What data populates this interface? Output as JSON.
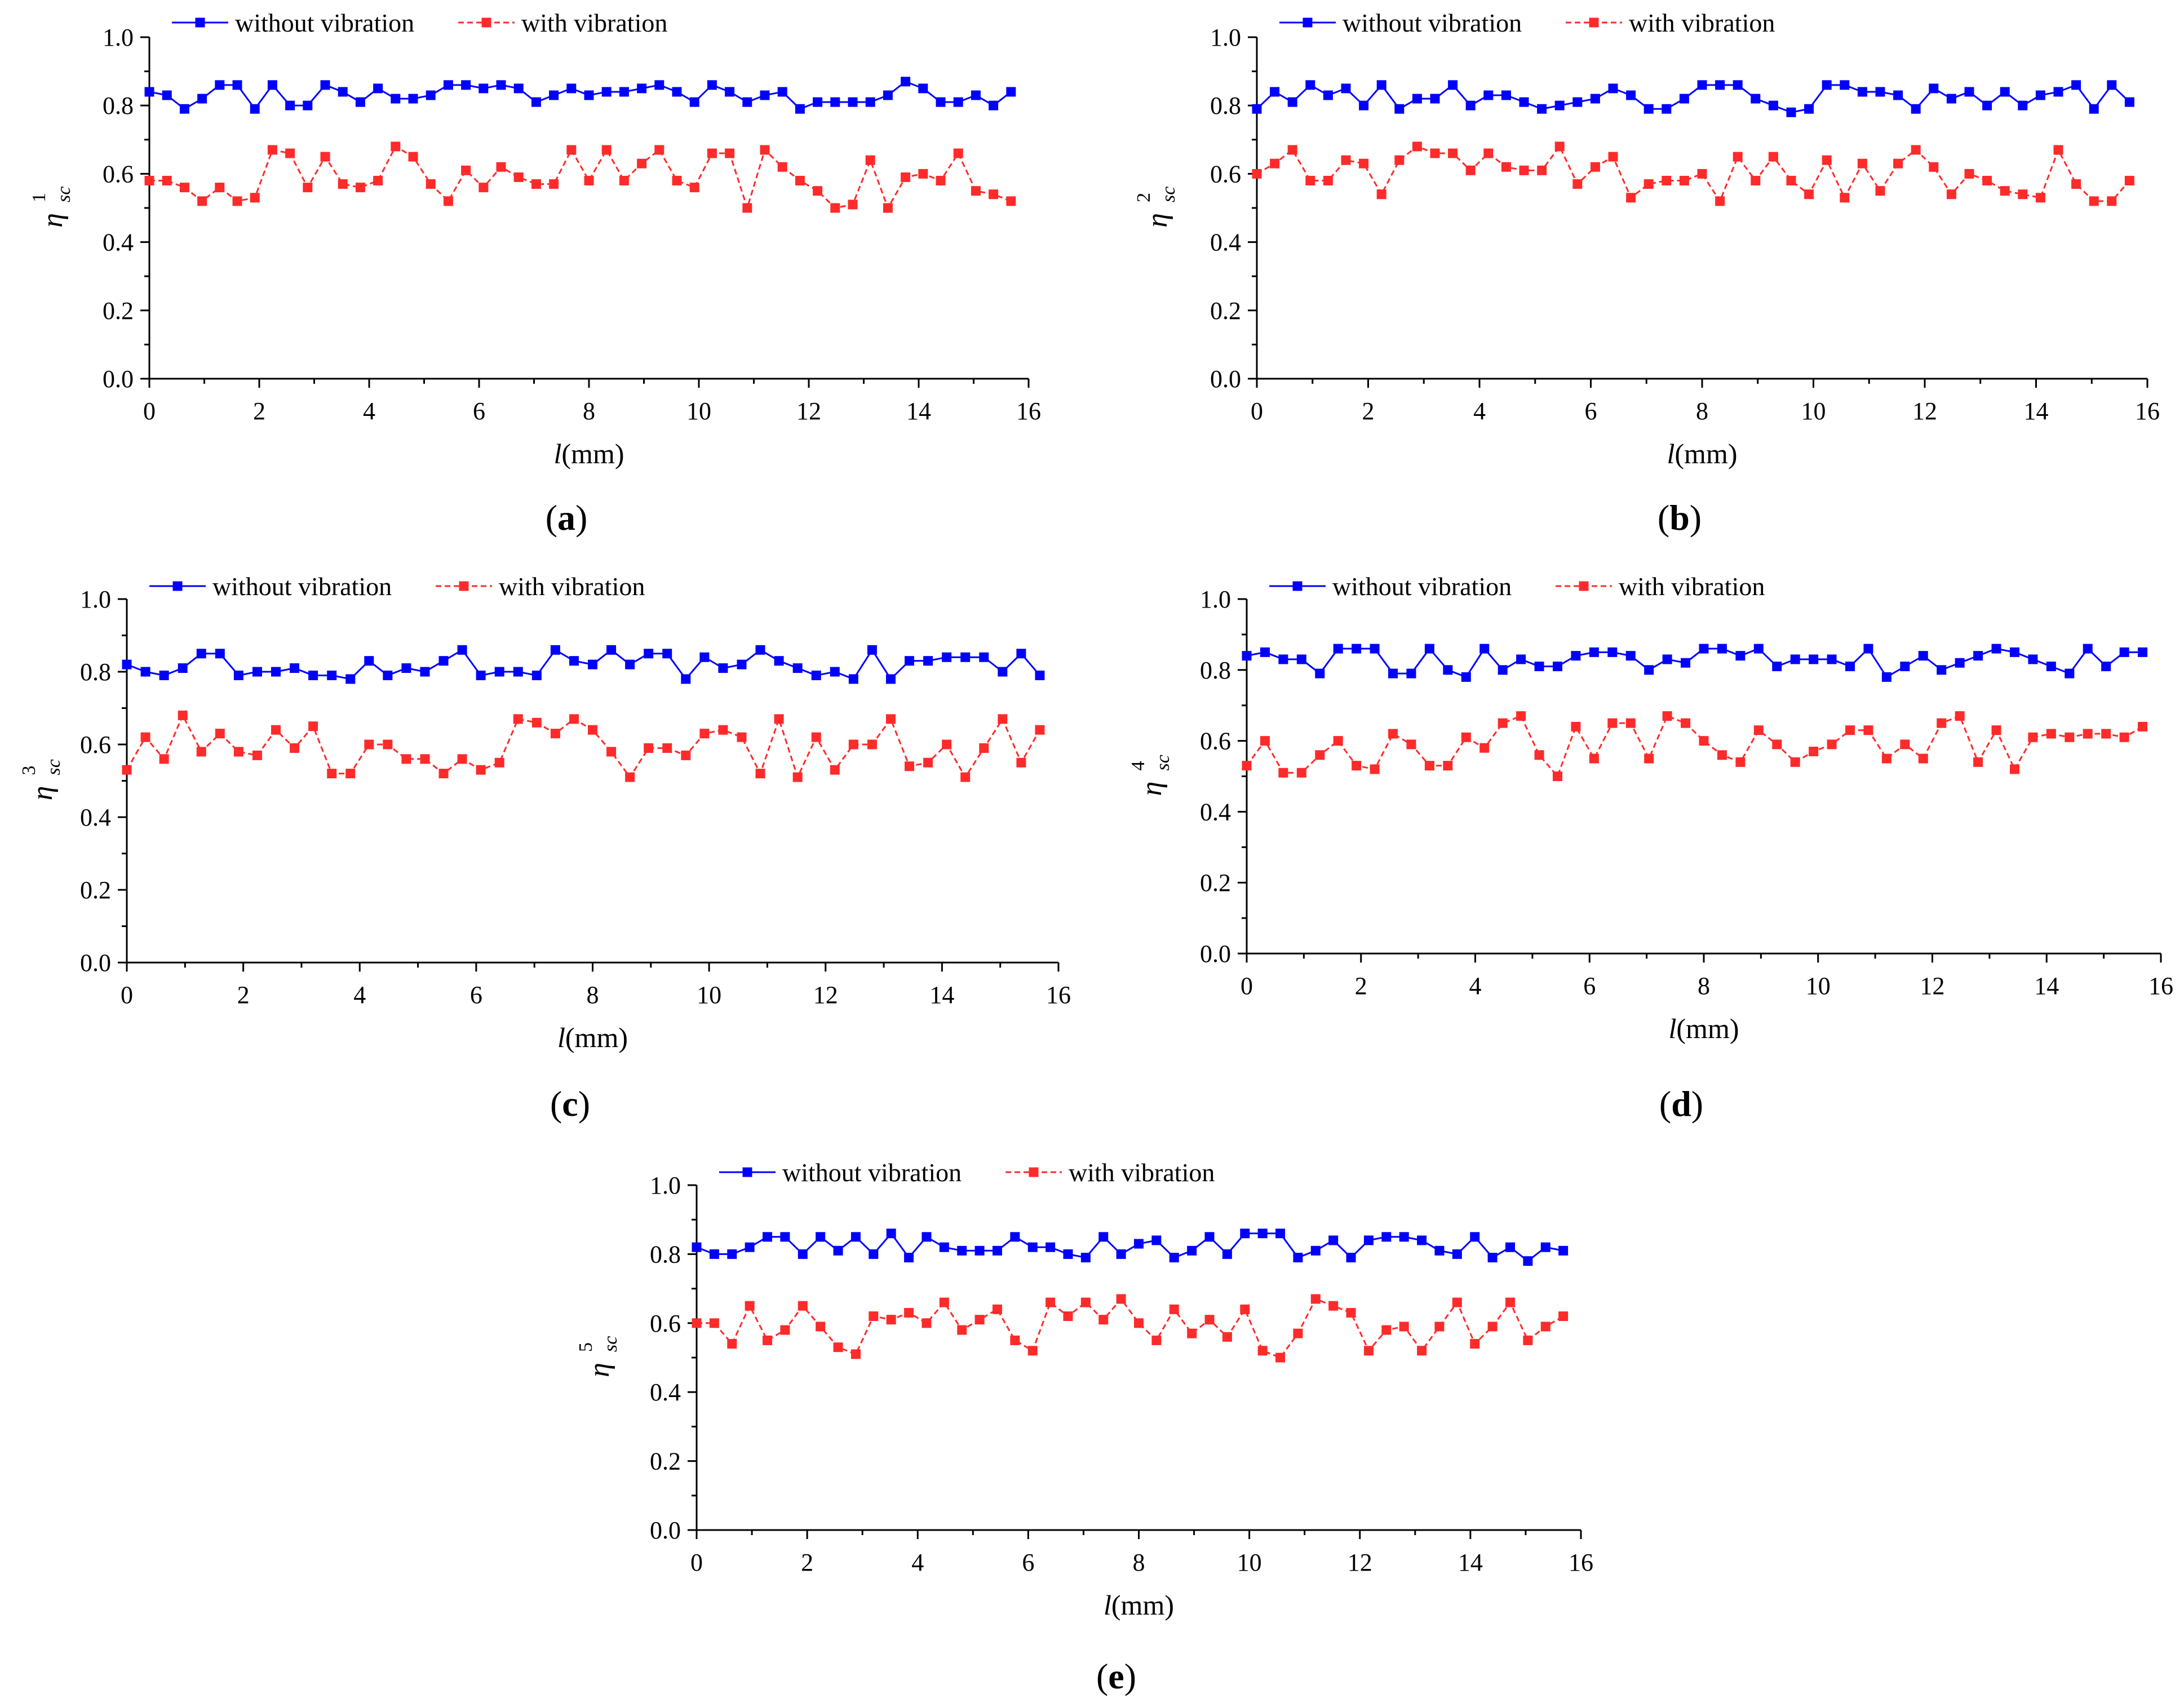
{
  "figure": {
    "series_names": [
      "without vibration",
      "with vibration"
    ],
    "colors": {
      "without": "#0000ff",
      "with": "#ff2a2a",
      "axis": "#000000"
    }
  },
  "chart_data": [
    {
      "type": "line",
      "panel_label": "a",
      "xlabel_var": "l",
      "xlabel_unit": "(mm)",
      "ylabel_main": "η",
      "ylabel_sub": "sc",
      "ylabel_sup": "1",
      "xlim": [
        0,
        16
      ],
      "ylim": [
        0.0,
        1.0
      ],
      "xticks": [
        0,
        2,
        4,
        6,
        8,
        10,
        12,
        14,
        16
      ],
      "yticks": [
        0.0,
        0.2,
        0.4,
        0.6,
        0.8,
        1.0
      ],
      "ytick_labels": [
        "0.0",
        "0.2",
        "0.4",
        "0.6",
        "0.8",
        "1.0"
      ],
      "x": [
        0.0,
        0.32,
        0.64,
        0.96,
        1.28,
        1.6,
        1.92,
        2.24,
        2.56,
        2.88,
        3.2,
        3.52,
        3.84,
        4.16,
        4.48,
        4.8,
        5.12,
        5.44,
        5.76,
        6.08,
        6.4,
        6.72,
        7.04,
        7.36,
        7.68,
        8.0,
        8.32,
        8.64,
        8.96,
        9.28,
        9.6,
        9.92,
        10.24,
        10.56,
        10.88,
        11.2,
        11.52,
        11.84,
        12.16,
        12.48,
        12.8,
        13.12,
        13.44,
        13.76,
        14.08,
        14.4,
        14.72,
        15.04,
        15.36,
        15.68
      ],
      "series": [
        {
          "name": "without vibration",
          "values": [
            0.84,
            0.83,
            0.79,
            0.82,
            0.86,
            0.86,
            0.79,
            0.86,
            0.8,
            0.8,
            0.86,
            0.84,
            0.81,
            0.85,
            0.82,
            0.82,
            0.83,
            0.86,
            0.86,
            0.85,
            0.86,
            0.85,
            0.81,
            0.83,
            0.85,
            0.83,
            0.84,
            0.84,
            0.85,
            0.86,
            0.84,
            0.81,
            0.86,
            0.84,
            0.81,
            0.83,
            0.84,
            0.79,
            0.81,
            0.81,
            0.81,
            0.81,
            0.83,
            0.87,
            0.85,
            0.81,
            0.81,
            0.83,
            0.8,
            0.84
          ]
        },
        {
          "name": "with vibration",
          "values": [
            0.58,
            0.58,
            0.56,
            0.52,
            0.56,
            0.52,
            0.53,
            0.67,
            0.66,
            0.56,
            0.65,
            0.57,
            0.56,
            0.58,
            0.68,
            0.65,
            0.57,
            0.52,
            0.61,
            0.56,
            0.62,
            0.59,
            0.57,
            0.57,
            0.67,
            0.58,
            0.67,
            0.58,
            0.63,
            0.67,
            0.58,
            0.56,
            0.66,
            0.66,
            0.5,
            0.67,
            0.62,
            0.58,
            0.55,
            0.5,
            0.51,
            0.64,
            0.5,
            0.59,
            0.6,
            0.58,
            0.66,
            0.55,
            0.54,
            0.52
          ]
        }
      ]
    },
    {
      "type": "line",
      "panel_label": "b",
      "xlabel_var": "l",
      "xlabel_unit": "(mm)",
      "ylabel_main": "η",
      "ylabel_sub": "sc",
      "ylabel_sup": "2",
      "xlim": [
        0,
        16
      ],
      "ylim": [
        0.0,
        1.0
      ],
      "xticks": [
        0,
        2,
        4,
        6,
        8,
        10,
        12,
        14,
        16
      ],
      "yticks": [
        0.0,
        0.2,
        0.4,
        0.6,
        0.8,
        1.0
      ],
      "ytick_labels": [
        "0.0",
        "0.2",
        "0.4",
        "0.6",
        "0.8",
        "1.0"
      ],
      "x": [
        0.0,
        0.32,
        0.64,
        0.96,
        1.28,
        1.6,
        1.92,
        2.24,
        2.56,
        2.88,
        3.2,
        3.52,
        3.84,
        4.16,
        4.48,
        4.8,
        5.12,
        5.44,
        5.76,
        6.08,
        6.4,
        6.72,
        7.04,
        7.36,
        7.68,
        8.0,
        8.32,
        8.64,
        8.96,
        9.28,
        9.6,
        9.92,
        10.24,
        10.56,
        10.88,
        11.2,
        11.52,
        11.84,
        12.16,
        12.48,
        12.8,
        13.12,
        13.44,
        13.76,
        14.08,
        14.4,
        14.72,
        15.04,
        15.36,
        15.68
      ],
      "series": [
        {
          "name": "without vibration",
          "values": [
            0.79,
            0.84,
            0.81,
            0.86,
            0.83,
            0.85,
            0.8,
            0.86,
            0.79,
            0.82,
            0.82,
            0.86,
            0.8,
            0.83,
            0.83,
            0.81,
            0.79,
            0.8,
            0.81,
            0.82,
            0.85,
            0.83,
            0.79,
            0.79,
            0.82,
            0.86,
            0.86,
            0.86,
            0.82,
            0.8,
            0.78,
            0.79,
            0.86,
            0.86,
            0.84,
            0.84,
            0.83,
            0.79,
            0.85,
            0.82,
            0.84,
            0.8,
            0.84,
            0.8,
            0.83,
            0.84,
            0.86,
            0.79,
            0.86,
            0.81
          ]
        },
        {
          "name": "with vibration",
          "values": [
            0.6,
            0.63,
            0.67,
            0.58,
            0.58,
            0.64,
            0.63,
            0.54,
            0.64,
            0.68,
            0.66,
            0.66,
            0.61,
            0.66,
            0.62,
            0.61,
            0.61,
            0.68,
            0.57,
            0.62,
            0.65,
            0.53,
            0.57,
            0.58,
            0.58,
            0.6,
            0.52,
            0.65,
            0.58,
            0.65,
            0.58,
            0.54,
            0.64,
            0.53,
            0.63,
            0.55,
            0.63,
            0.67,
            0.62,
            0.54,
            0.6,
            0.58,
            0.55,
            0.54,
            0.53,
            0.67,
            0.57,
            0.52,
            0.52,
            0.58
          ]
        }
      ]
    },
    {
      "type": "line",
      "panel_label": "c",
      "xlabel_var": "l",
      "xlabel_unit": "(mm)",
      "ylabel_main": "η",
      "ylabel_sub": "sc",
      "ylabel_sup": "3",
      "xlim": [
        0,
        16
      ],
      "ylim": [
        0.0,
        1.0
      ],
      "xticks": [
        0,
        2,
        4,
        6,
        8,
        10,
        12,
        14,
        16
      ],
      "yticks": [
        0.0,
        0.2,
        0.4,
        0.6,
        0.8,
        1.0
      ],
      "ytick_labels": [
        "0.0",
        "0.2",
        "0.4",
        "0.6",
        "0.8",
        "1.0"
      ],
      "x": [
        0.0,
        0.32,
        0.64,
        0.96,
        1.28,
        1.6,
        1.92,
        2.24,
        2.56,
        2.88,
        3.2,
        3.52,
        3.84,
        4.16,
        4.48,
        4.8,
        5.12,
        5.44,
        5.76,
        6.08,
        6.4,
        6.72,
        7.04,
        7.36,
        7.68,
        8.0,
        8.32,
        8.64,
        8.96,
        9.28,
        9.6,
        9.92,
        10.24,
        10.56,
        10.88,
        11.2,
        11.52,
        11.84,
        12.16,
        12.48,
        12.8,
        13.12,
        13.44,
        13.76,
        14.08,
        14.4,
        14.72,
        15.04,
        15.36,
        15.68
      ],
      "series": [
        {
          "name": "without vibration",
          "values": [
            0.82,
            0.8,
            0.79,
            0.81,
            0.85,
            0.85,
            0.79,
            0.8,
            0.8,
            0.81,
            0.79,
            0.79,
            0.78,
            0.83,
            0.79,
            0.81,
            0.8,
            0.83,
            0.86,
            0.79,
            0.8,
            0.8,
            0.79,
            0.86,
            0.83,
            0.82,
            0.86,
            0.82,
            0.85,
            0.85,
            0.78,
            0.84,
            0.81,
            0.82,
            0.86,
            0.83,
            0.81,
            0.79,
            0.8,
            0.78,
            0.86,
            0.78,
            0.83,
            0.83,
            0.84,
            0.84,
            0.84,
            0.8,
            0.85,
            0.79
          ]
        },
        {
          "name": "with vibration",
          "values": [
            0.53,
            0.62,
            0.56,
            0.68,
            0.58,
            0.63,
            0.58,
            0.57,
            0.64,
            0.59,
            0.65,
            0.52,
            0.52,
            0.6,
            0.6,
            0.56,
            0.56,
            0.52,
            0.56,
            0.53,
            0.55,
            0.67,
            0.66,
            0.63,
            0.67,
            0.64,
            0.58,
            0.51,
            0.59,
            0.59,
            0.57,
            0.63,
            0.64,
            0.62,
            0.52,
            0.67,
            0.51,
            0.62,
            0.53,
            0.6,
            0.6,
            0.67,
            0.54,
            0.55,
            0.6,
            0.51,
            0.59,
            0.67,
            0.55,
            0.64
          ]
        }
      ]
    },
    {
      "type": "line",
      "panel_label": "d",
      "xlabel_var": "l",
      "xlabel_unit": "(mm)",
      "ylabel_main": "η",
      "ylabel_sub": "sc",
      "ylabel_sup": "4",
      "xlim": [
        0,
        16
      ],
      "ylim": [
        0.0,
        1.0
      ],
      "xticks": [
        0,
        2,
        4,
        6,
        8,
        10,
        12,
        14,
        16
      ],
      "yticks": [
        0.0,
        0.2,
        0.4,
        0.6,
        0.8,
        1.0
      ],
      "ytick_labels": [
        "0.0",
        "0.2",
        "0.4",
        "0.6",
        "0.8",
        "1.0"
      ],
      "x": [
        0.0,
        0.32,
        0.64,
        0.96,
        1.28,
        1.6,
        1.92,
        2.24,
        2.56,
        2.88,
        3.2,
        3.52,
        3.84,
        4.16,
        4.48,
        4.8,
        5.12,
        5.44,
        5.76,
        6.08,
        6.4,
        6.72,
        7.04,
        7.36,
        7.68,
        8.0,
        8.32,
        8.64,
        8.96,
        9.28,
        9.6,
        9.92,
        10.24,
        10.56,
        10.88,
        11.2,
        11.52,
        11.84,
        12.16,
        12.48,
        12.8,
        13.12,
        13.44,
        13.76,
        14.08,
        14.4,
        14.72,
        15.04,
        15.36,
        15.68
      ],
      "series": [
        {
          "name": "without vibration",
          "values": [
            0.84,
            0.85,
            0.83,
            0.83,
            0.79,
            0.86,
            0.86,
            0.86,
            0.79,
            0.79,
            0.86,
            0.8,
            0.78,
            0.86,
            0.8,
            0.83,
            0.81,
            0.81,
            0.84,
            0.85,
            0.85,
            0.84,
            0.8,
            0.83,
            0.82,
            0.86,
            0.86,
            0.84,
            0.86,
            0.81,
            0.83,
            0.83,
            0.83,
            0.81,
            0.86,
            0.78,
            0.81,
            0.84,
            0.8,
            0.82,
            0.84,
            0.86,
            0.85,
            0.83,
            0.81,
            0.79,
            0.86,
            0.81,
            0.85,
            0.85
          ]
        },
        {
          "name": "with vibration",
          "values": [
            0.53,
            0.6,
            0.51,
            0.51,
            0.56,
            0.6,
            0.53,
            0.52,
            0.62,
            0.59,
            0.53,
            0.53,
            0.61,
            0.58,
            0.65,
            0.67,
            0.56,
            0.5,
            0.64,
            0.55,
            0.65,
            0.65,
            0.55,
            0.67,
            0.65,
            0.6,
            0.56,
            0.54,
            0.63,
            0.59,
            0.54,
            0.57,
            0.59,
            0.63,
            0.63,
            0.55,
            0.59,
            0.55,
            0.65,
            0.67,
            0.54,
            0.63,
            0.52,
            0.61,
            0.62,
            0.61,
            0.62,
            0.62,
            0.61,
            0.64
          ]
        }
      ]
    },
    {
      "type": "line",
      "panel_label": "e",
      "xlabel_var": "l",
      "xlabel_unit": "(mm)",
      "ylabel_main": "η",
      "ylabel_sub": "sc",
      "ylabel_sup": "5",
      "xlim": [
        0,
        16
      ],
      "ylim": [
        0.0,
        1.0
      ],
      "xticks": [
        0,
        2,
        4,
        6,
        8,
        10,
        12,
        14,
        16
      ],
      "yticks": [
        0.0,
        0.2,
        0.4,
        0.6,
        0.8,
        1.0
      ],
      "ytick_labels": [
        "0.0",
        "0.2",
        "0.4",
        "0.6",
        "0.8",
        "1.0"
      ],
      "x": [
        0.0,
        0.32,
        0.64,
        0.96,
        1.28,
        1.6,
        1.92,
        2.24,
        2.56,
        2.88,
        3.2,
        3.52,
        3.84,
        4.16,
        4.48,
        4.8,
        5.12,
        5.44,
        5.76,
        6.08,
        6.4,
        6.72,
        7.04,
        7.36,
        7.68,
        8.0,
        8.32,
        8.64,
        8.96,
        9.28,
        9.6,
        9.92,
        10.24,
        10.56,
        10.88,
        11.2,
        11.52,
        11.84,
        12.16,
        12.48,
        12.8,
        13.12,
        13.44,
        13.76,
        14.08,
        14.4,
        14.72,
        15.04,
        15.36,
        15.68
      ],
      "series": [
        {
          "name": "without vibration",
          "values": [
            0.82,
            0.8,
            0.8,
            0.82,
            0.85,
            0.85,
            0.8,
            0.85,
            0.81,
            0.85,
            0.8,
            0.86,
            0.79,
            0.85,
            0.82,
            0.81,
            0.81,
            0.81,
            0.85,
            0.82,
            0.82,
            0.8,
            0.79,
            0.85,
            0.8,
            0.83,
            0.84,
            0.79,
            0.81,
            0.85,
            0.8,
            0.86,
            0.86,
            0.86,
            0.79,
            0.81,
            0.84,
            0.79,
            0.84,
            0.85,
            0.85,
            0.84,
            0.81,
            0.8,
            0.85,
            0.79,
            0.82,
            0.78,
            0.82,
            0.81
          ]
        },
        {
          "name": "with vibration",
          "values": [
            0.6,
            0.6,
            0.54,
            0.65,
            0.55,
            0.58,
            0.65,
            0.59,
            0.53,
            0.51,
            0.62,
            0.61,
            0.63,
            0.6,
            0.66,
            0.58,
            0.61,
            0.64,
            0.55,
            0.52,
            0.66,
            0.62,
            0.66,
            0.61,
            0.67,
            0.6,
            0.55,
            0.64,
            0.57,
            0.61,
            0.56,
            0.64,
            0.52,
            0.5,
            0.57,
            0.67,
            0.65,
            0.63,
            0.52,
            0.58,
            0.59,
            0.52,
            0.59,
            0.66,
            0.54,
            0.59,
            0.66,
            0.55,
            0.59,
            0.62
          ]
        }
      ]
    }
  ]
}
